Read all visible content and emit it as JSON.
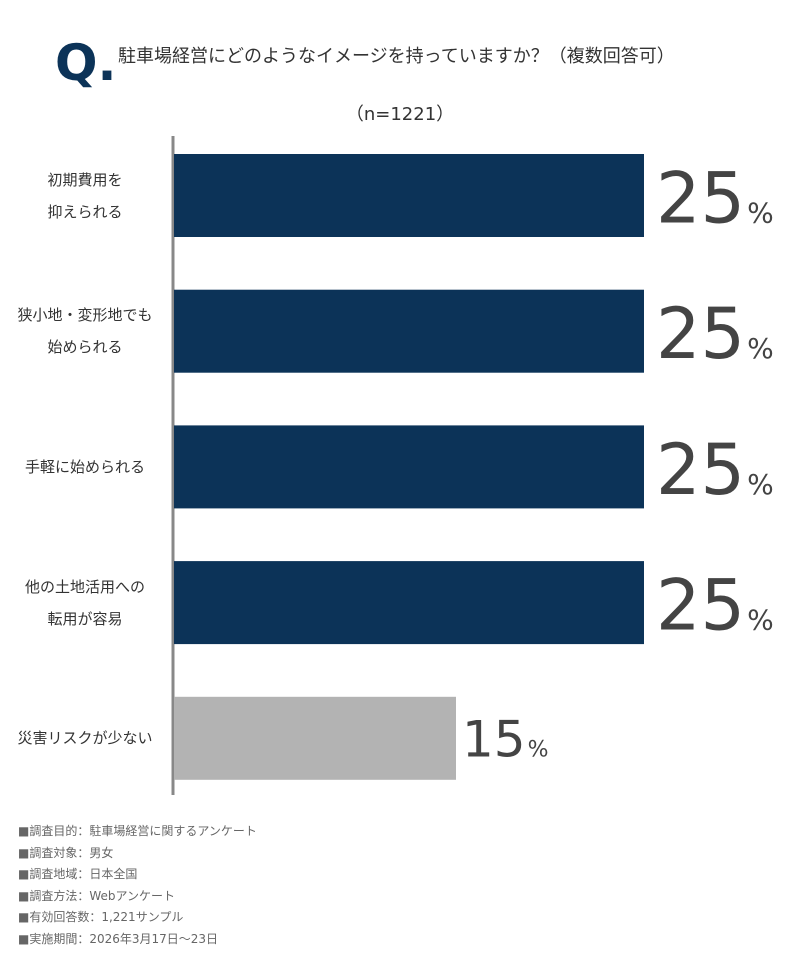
{
  "chart_data": {
    "type": "hbar",
    "title_mark": "Q.",
    "title": "駐車場経営にどのようなイメージを持っていますか？（複数回答可）",
    "subtitle": "（n=1221）",
    "categories": [
      "初期費用を\n抑えられる",
      "狭小地・変形地でも\n始められる",
      "手軽に始められる",
      "他の土地活用への\n転用が容易",
      "災害リスクが少ない"
    ],
    "values": [
      25,
      25,
      25,
      25,
      15
    ],
    "value_labels": [
      "25%",
      "25%",
      "25%",
      "25%",
      "15%"
    ],
    "colors": [
      "#0c3358",
      "#0c3358",
      "#0c3358",
      "#0c3358",
      "#b3b3b3"
    ],
    "notes": [
      "■調査目的：駐車場経営に関するアンケート",
      "■調査対象：男女",
      "■調査地域：日本全国",
      "■調査方法：Webアンケート",
      "■有効回答数：1,221サンプル",
      "■実施期間：2026年3月17日～23日"
    ]
  }
}
